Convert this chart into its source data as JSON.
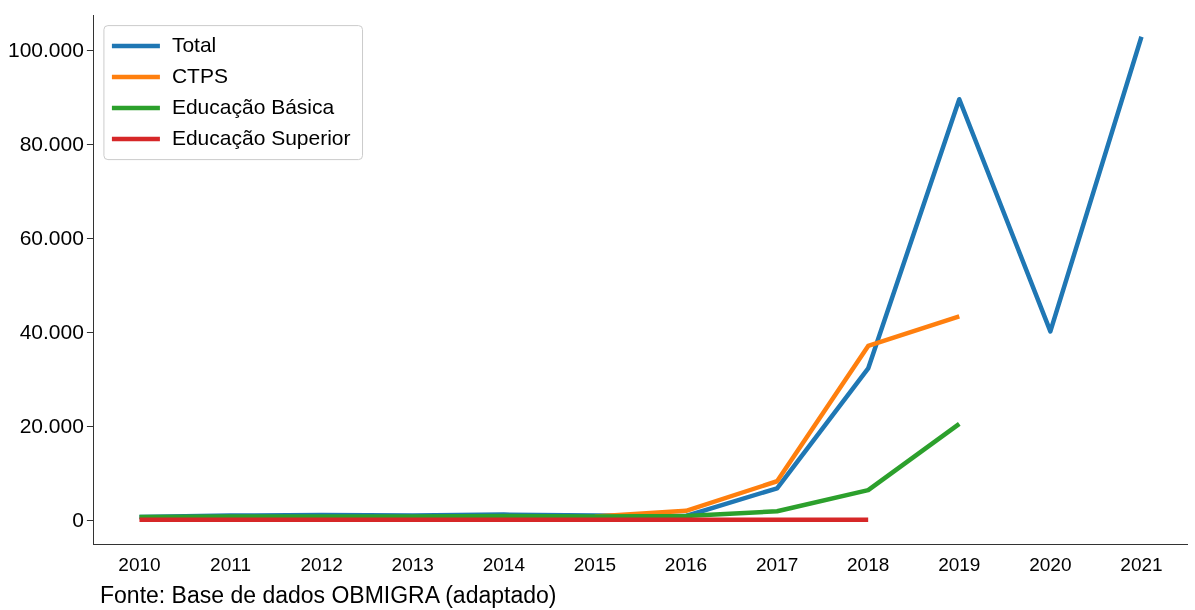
{
  "chart_data": {
    "type": "line",
    "categories": [
      "2010",
      "2011",
      "2012",
      "2013",
      "2014",
      "2015",
      "2016",
      "2017",
      "2018",
      "2019",
      "2020",
      "2021"
    ],
    "series": [
      {
        "name": "Total",
        "color": "#1f77b4",
        "values": [
          800,
          1100,
          1200,
          1100,
          1300,
          1100,
          1000,
          6900,
          32400,
          89700,
          40300,
          103000
        ]
      },
      {
        "name": "CTPS",
        "color": "#ff7f0e",
        "values": [
          null,
          null,
          null,
          null,
          null,
          900,
          2100,
          8400,
          37200,
          43500,
          null,
          null
        ]
      },
      {
        "name": "Educação Básica",
        "color": "#2ca02c",
        "values": [
          800,
          900,
          900,
          900,
          1000,
          900,
          1000,
          2000,
          6500,
          20600,
          null,
          null
        ]
      },
      {
        "name": "Educação Superior",
        "color": "#d62728",
        "values": [
          200,
          200,
          200,
          200,
          200,
          200,
          200,
          200,
          200,
          null,
          null,
          null
        ]
      }
    ],
    "ylim": [
      -5000,
      107500
    ],
    "yticks": [
      {
        "value": 0,
        "label": "0"
      },
      {
        "value": 20000,
        "label": "20.000"
      },
      {
        "value": 40000,
        "label": "40.000"
      },
      {
        "value": 60000,
        "label": "60.000"
      },
      {
        "value": 80000,
        "label": "80.000"
      },
      {
        "value": 100000,
        "label": "100.000"
      }
    ],
    "legend": "top left",
    "grid": false,
    "marker": "none",
    "line_style": "solid",
    "annotations": [
      "Fonte: Base de dados OBMIGRA (adaptado)"
    ]
  }
}
